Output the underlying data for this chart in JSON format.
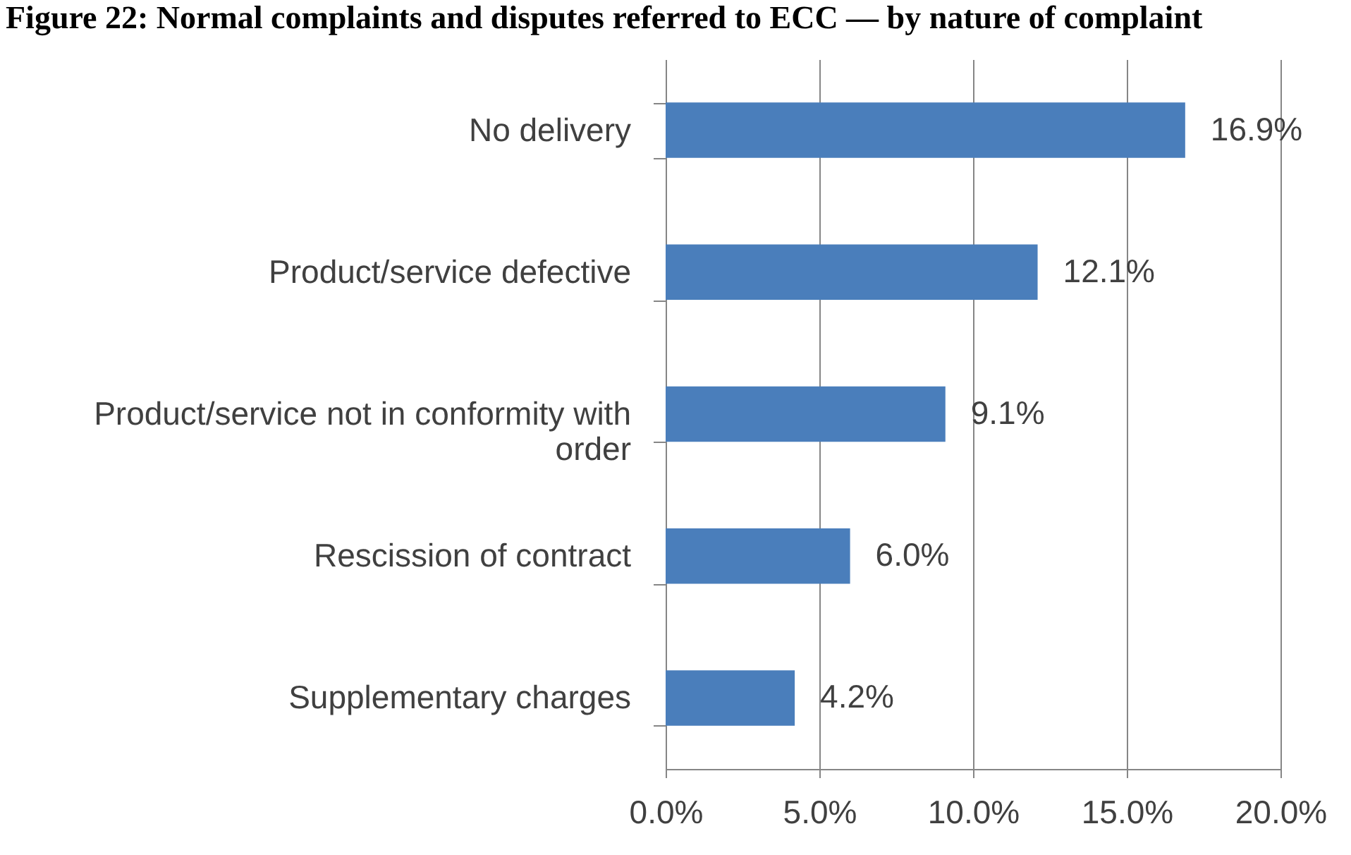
{
  "chart_data": {
    "type": "bar",
    "orientation": "horizontal",
    "title": "Figure 22: Normal complaints and disputes referred to ECC — by nature of complaint",
    "categories": [
      "No delivery",
      "Product/service defective",
      "Product/service not in conformity with order",
      "Rescission of contract",
      "Supplementary charges"
    ],
    "values": [
      16.9,
      12.1,
      9.1,
      6.0,
      4.2
    ],
    "color": "#4a7ebb",
    "value_labels": [
      "16.9%",
      "12.1%",
      "9.1%",
      "6.0%",
      "4.2%"
    ],
    "xlim": [
      0,
      20
    ],
    "xticks": [
      {
        "value": 0,
        "label": "0.0%"
      },
      {
        "value": 5,
        "label": "5.0%"
      },
      {
        "value": 10,
        "label": "10.0%"
      },
      {
        "value": 15,
        "label": "15.0%"
      },
      {
        "value": 20,
        "label": "20.0%"
      }
    ],
    "grid": "x"
  }
}
